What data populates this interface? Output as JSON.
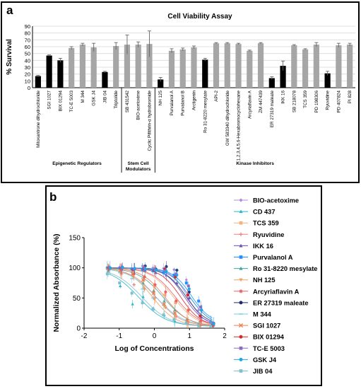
{
  "panel_a": {
    "label": "a",
    "chart_data": {
      "type": "bar",
      "title": "Cell Viability Assay",
      "ylabel": "% Survival",
      "ylim": [
        0,
        90
      ],
      "yticks": [
        0,
        10,
        20,
        30,
        40,
        50,
        60,
        70,
        80,
        90
      ],
      "grid": true,
      "colors": {
        "highlight": "#000000",
        "other": "#a6a6a6",
        "error": "#666666"
      },
      "categories": [
        "Mitoxantrone dihydrochloride",
        "SGI 1027",
        "BIX 01294",
        "TC-E 5003",
        "M 344",
        "GSK J4",
        "JIB 04",
        "Triptolide",
        "SB 431542",
        "BIO-acetoxime",
        "Cyclic Pifithrin-α hydrobromide",
        "NH 125",
        "Purvalanol A",
        "Purvalanol B",
        "Arctigenin",
        "Ro 31-8220 mesylate",
        "API-2",
        "GW 583340 dihydrochloride",
        "1,2,3,4,5,6-Hexabromocyclohexane",
        "Arcyriaflavin A",
        "ZM 447439",
        "ER 27319 maleate",
        "IKK 16",
        "SB 218078",
        "TCS 359",
        "PD 198306",
        "Ryuvidine",
        "PD 407824",
        "PI 828"
      ],
      "values": [
        17,
        47,
        40,
        58,
        63,
        59,
        23,
        61,
        63,
        63,
        64,
        12,
        54,
        56,
        59,
        41,
        65,
        65,
        64,
        54,
        65,
        14,
        32,
        62,
        56,
        63,
        21,
        62,
        63
      ],
      "errors": [
        1,
        1,
        3,
        2,
        2,
        6,
        1,
        5,
        14,
        4,
        19,
        3,
        3,
        2,
        2,
        2,
        1,
        1,
        1,
        1,
        1,
        2,
        7,
        1,
        1,
        3,
        3,
        3,
        2
      ],
      "highlight": [
        true,
        true,
        true,
        false,
        false,
        false,
        true,
        false,
        false,
        false,
        false,
        true,
        false,
        false,
        false,
        true,
        false,
        false,
        false,
        false,
        false,
        true,
        true,
        false,
        false,
        false,
        true,
        false,
        false
      ],
      "groups": [
        {
          "label": "Epigenetic Regulators",
          "start": 0,
          "end": 7
        },
        {
          "label": "Stem Cell Modulators",
          "start": 8,
          "end": 10
        },
        {
          "label": "Kinase Inhibitors",
          "start": 11,
          "end": 28
        }
      ]
    }
  },
  "panel_b": {
    "label": "b",
    "chart_data": {
      "type": "scatter",
      "xlabel": "Log of Concentrations",
      "ylabel": "Normalized Absorbance (%)",
      "xlim": [
        -2,
        2
      ],
      "ylim": [
        0,
        150
      ],
      "xticks": [
        -2,
        -1,
        0,
        1,
        2
      ],
      "yticks": [
        0,
        50,
        100,
        150
      ],
      "grid": false,
      "legend_position": "right",
      "x": [
        -1.3,
        -0.95,
        -0.6,
        -0.3,
        0.0,
        0.3,
        0.6,
        0.95,
        1.3,
        1.65
      ],
      "series": [
        {
          "name": "BIO-acetoxime",
          "color": "#b48bd8",
          "marker": "diamond",
          "hill": {
            "top": 100,
            "bottom": 3,
            "logic50": 0.95,
            "slope": 1.8
          },
          "values": [
            100,
            101,
            99,
            103,
            100,
            99,
            97,
            80,
            30,
            5
          ]
        },
        {
          "name": "CD 437",
          "color": "#2ab7c9",
          "marker": "triangle",
          "hill": {
            "top": 100,
            "bottom": 3,
            "logic50": -0.45,
            "slope": 1.1
          },
          "values": [
            95,
            70,
            40,
            52,
            32,
            22,
            12,
            8,
            5,
            3
          ]
        },
        {
          "name": "TCS 359",
          "color": "#f4b183",
          "marker": "square",
          "hill": {
            "top": 100,
            "bottom": 2,
            "logic50": 0.55,
            "slope": 1.3
          },
          "values": [
            99,
            95,
            90,
            80,
            70,
            55,
            42,
            28,
            10,
            3
          ]
        },
        {
          "name": "Ryuvidine",
          "color": "#f08080",
          "marker": "plus",
          "hill": {
            "top": 100,
            "bottom": 3,
            "logic50": 0.05,
            "slope": 1.2
          },
          "values": [
            98,
            90,
            72,
            65,
            50,
            35,
            20,
            10,
            5,
            3
          ]
        },
        {
          "name": "IKK 16",
          "color": "#6b4fbb",
          "marker": "triangle",
          "hill": {
            "top": 100,
            "bottom": 5,
            "logic50": 0.85,
            "slope": 1.6
          },
          "values": [
            100,
            102,
            98,
            96,
            92,
            88,
            75,
            50,
            18,
            6
          ]
        },
        {
          "name": "Purvalanol A",
          "color": "#1e90ff",
          "marker": "square",
          "hill": {
            "top": 100,
            "bottom": 8,
            "logic50": 1.05,
            "slope": 1.6
          },
          "values": [
            100,
            99,
            98,
            97,
            95,
            92,
            88,
            75,
            45,
            10
          ]
        },
        {
          "name": "Ro 31-8220 mesylate",
          "color": "#3aa89e",
          "marker": "triangle",
          "hill": {
            "top": 100,
            "bottom": 3,
            "logic50": 0.25,
            "slope": 1.2
          },
          "values": [
            98,
            94,
            90,
            75,
            62,
            45,
            30,
            15,
            6,
            3
          ]
        },
        {
          "name": "NH 125",
          "color": "#f4a259",
          "marker": "triangle-down",
          "hill": {
            "top": 100,
            "bottom": 3,
            "logic50": -0.05,
            "slope": 1.3
          },
          "values": [
            99,
            92,
            85,
            66,
            48,
            35,
            20,
            10,
            5,
            3
          ]
        },
        {
          "name": "Arcyriaflavin A",
          "color": "#f06060",
          "marker": "star",
          "hill": {
            "top": 100,
            "bottom": 3,
            "logic50": 0.6,
            "slope": 1.3
          },
          "values": [
            100,
            98,
            90,
            85,
            72,
            60,
            45,
            30,
            12,
            4
          ]
        },
        {
          "name": "ER 27319 maleate",
          "color": "#1f2b6b",
          "marker": "circle",
          "hill": {
            "top": 100,
            "bottom": 5,
            "logic50": 0.9,
            "slope": 1.5
          },
          "values": [
            100,
            101,
            99,
            103,
            98,
            102,
            96,
            60,
            30,
            8
          ]
        },
        {
          "name": "M 344",
          "color": "#6fd3e3",
          "marker": "dash",
          "hill": {
            "top": 100,
            "bottom": 3,
            "logic50": 0.05,
            "slope": 1.1
          },
          "values": [
            98,
            92,
            82,
            65,
            50,
            38,
            24,
            12,
            5,
            3
          ]
        },
        {
          "name": "SGI 1027",
          "color": "#f47b4a",
          "marker": "cross",
          "hill": {
            "top": 100,
            "bottom": 3,
            "logic50": 0.3,
            "slope": 1.3
          },
          "values": [
            99,
            96,
            90,
            80,
            58,
            40,
            25,
            12,
            5,
            3
          ]
        },
        {
          "name": "BIX 01294",
          "color": "#d62828",
          "marker": "circle",
          "hill": {
            "top": 100,
            "bottom": 3,
            "logic50": 0.75,
            "slope": 1.5
          },
          "values": [
            100,
            99,
            97,
            99,
            96,
            98,
            85,
            55,
            20,
            5
          ]
        },
        {
          "name": "TC-E 5003",
          "color": "#8e6bbf",
          "marker": "square",
          "hill": {
            "top": 100,
            "bottom": 5,
            "logic50": 1.0,
            "slope": 1.5
          },
          "values": [
            100,
            99,
            98,
            100,
            97,
            95,
            90,
            70,
            35,
            8
          ]
        },
        {
          "name": "GSK J4",
          "color": "#1ea7e8",
          "marker": "circle",
          "hill": {
            "top": 100,
            "bottom": 5,
            "logic50": 1.0,
            "slope": 1.5
          },
          "values": [
            100,
            101,
            99,
            98,
            96,
            94,
            88,
            65,
            30,
            7
          ]
        },
        {
          "name": "JIB 04",
          "color": "#7fbfcf",
          "marker": "square",
          "hill": {
            "top": 100,
            "bottom": 3,
            "logic50": -0.35,
            "slope": 1.1
          },
          "values": [
            90,
            75,
            58,
            42,
            32,
            22,
            14,
            8,
            4,
            3
          ]
        }
      ]
    }
  }
}
